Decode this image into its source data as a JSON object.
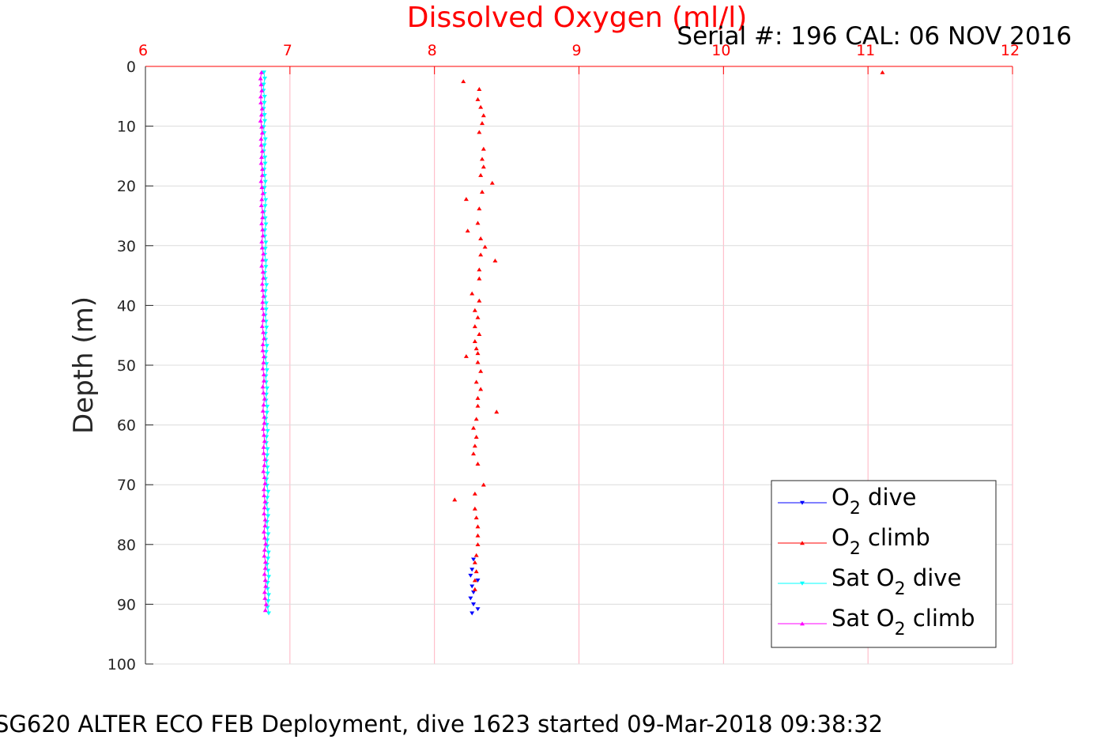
{
  "chart_data": {
    "type": "scatter",
    "title": "Dissolved Oxygen (ml/l)",
    "subtitle": "Serial #: 196  CAL: 06 NOV 2016",
    "caption": "SG620 ALTER ECO FEB Deployment, dive 1623 started 09-Mar-2018 09:38:32",
    "xlabel": "",
    "ylabel": "Depth (m)",
    "xlim": [
      6,
      12
    ],
    "ylim": [
      0,
      100
    ],
    "y_reversed": true,
    "x_axis_position": "top",
    "xticks": [
      "6",
      "7",
      "8",
      "9",
      "10",
      "11",
      "12"
    ],
    "yticks": [
      "0",
      "10",
      "20",
      "30",
      "40",
      "50",
      "60",
      "70",
      "80",
      "90",
      "100"
    ],
    "grid": true,
    "legend_position": "bottom-right",
    "series": [
      {
        "name": "O_2 dive",
        "color": "#0000ff",
        "marker": "triangle-down",
        "x": [
          8.27,
          8.26,
          8.25,
          8.3,
          8.26,
          8.27,
          8.25,
          8.27,
          8.3,
          8.26
        ],
        "y": [
          82.5,
          84.2,
          85.2,
          86.0,
          87.0,
          88.0,
          89.0,
          90.0,
          90.8,
          91.5
        ]
      },
      {
        "name": "O_2 climb",
        "color": "#ff0000",
        "marker": "triangle-up",
        "x": [
          11.1,
          8.2,
          8.31,
          8.3,
          8.32,
          8.34,
          8.33,
          8.31,
          8.34,
          8.33,
          8.34,
          8.32,
          8.4,
          8.33,
          8.22,
          8.31,
          8.3,
          8.23,
          8.32,
          8.35,
          8.32,
          8.42,
          8.31,
          8.31,
          8.26,
          8.31,
          8.28,
          8.3,
          8.28,
          8.31,
          8.28,
          8.29,
          8.3,
          8.22,
          8.3,
          8.32,
          8.29,
          8.32,
          8.3,
          8.3,
          8.43,
          8.29,
          8.27,
          8.29,
          8.28,
          8.27,
          8.3,
          8.34,
          8.28,
          8.14,
          8.28,
          8.29,
          8.3,
          8.3,
          8.3,
          8.29,
          8.28,
          8.29,
          8.28,
          8.28
        ],
        "y": [
          1.0,
          2.5,
          3.8,
          5.5,
          6.8,
          8.2,
          9.5,
          11.0,
          13.8,
          15.5,
          16.8,
          18.2,
          19.5,
          21.0,
          22.2,
          23.8,
          26.2,
          27.5,
          28.8,
          30.2,
          31.5,
          32.5,
          34.0,
          35.5,
          38.0,
          39.2,
          40.8,
          42.0,
          43.5,
          44.8,
          46.0,
          47.2,
          48.0,
          48.5,
          49.5,
          51.0,
          52.8,
          54.0,
          55.5,
          56.8,
          57.8,
          59.0,
          60.5,
          62.0,
          63.5,
          64.8,
          66.5,
          70.0,
          71.5,
          72.5,
          74.0,
          75.5,
          77.0,
          78.5,
          80.0,
          81.8,
          83.0,
          84.5,
          86.0,
          87.5
        ]
      },
      {
        "name": "Sat O_2 dive",
        "color": "#00ffff",
        "marker": "triangle-down",
        "x_start": 6.82,
        "x_end": 6.85,
        "y_start": 1,
        "y_end": 91.5,
        "n_points": 90
      },
      {
        "name": "Sat O_2 climb",
        "color": "#ff00ff",
        "marker": "triangle-up",
        "x_start": 6.83,
        "x_end": 6.8,
        "y_start": 91,
        "y_end": 1,
        "n_points": 90
      }
    ],
    "legend": [
      {
        "base": "O",
        "sub": "2",
        "suffix": " dive",
        "color": "#0000ff",
        "marker": "triangle-down"
      },
      {
        "base": "O",
        "sub": "2",
        "suffix": " climb",
        "color": "#ff0000",
        "marker": "triangle-up"
      },
      {
        "base": "Sat O",
        "sub": "2",
        "suffix": " dive",
        "color": "#00ffff",
        "marker": "triangle-down"
      },
      {
        "base": "Sat O",
        "sub": "2",
        "suffix": " climb",
        "color": "#ff00ff",
        "marker": "triangle-up"
      }
    ]
  },
  "colors": {
    "axis_x": "#ff0000",
    "grid_x": "#ffb3c1",
    "grid_y": "#dcdcdc",
    "axis_y": "#262626"
  }
}
